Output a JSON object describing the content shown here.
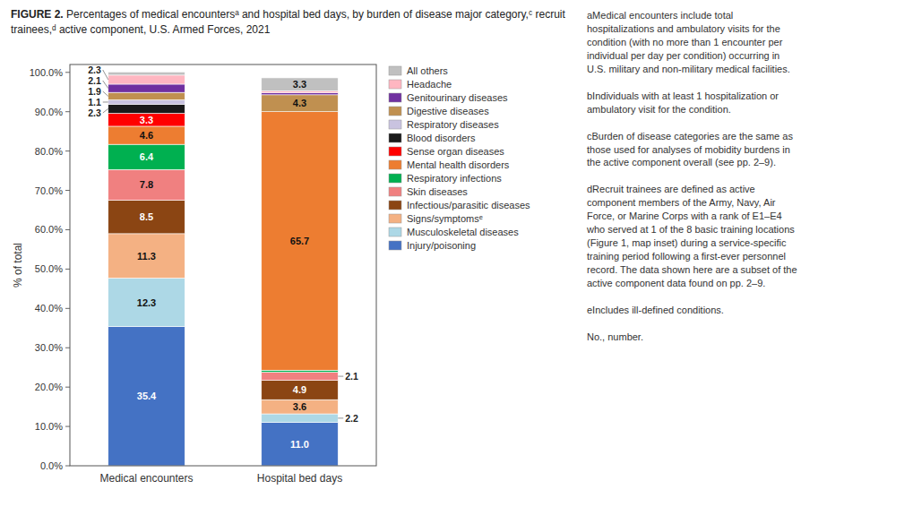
{
  "chart_data": {
    "type": "bar",
    "stacked": true,
    "title": "FIGURE 2.",
    "subtitle": "Percentages of medical encountersᵃ and hospital bed days, by burden of disease major category,ᶜ recruit trainees,ᵈ active component, U.S. Armed Forces, 2021",
    "ylabel": "% of total",
    "categories": [
      "Medical encounters",
      "Hospital bed days"
    ],
    "series": [
      {
        "name": "Injury/poisoning",
        "color": "#4472C4",
        "values": [
          35.4,
          11.0
        ],
        "value_labels": [
          "35.4",
          "11.0"
        ]
      },
      {
        "name": "Musculoskeletal diseases",
        "color": "#ADD8E6",
        "values": [
          12.3,
          2.2
        ],
        "value_labels": [
          "12.3",
          "2.2"
        ]
      },
      {
        "name": "Signs/symptomsᵉ",
        "color": "#F4B183",
        "values": [
          11.3,
          3.6
        ],
        "value_labels": [
          "11.3",
          "3.6"
        ]
      },
      {
        "name": "Infectious/parasitic diseases",
        "color": "#8B4513",
        "values": [
          8.5,
          4.9
        ],
        "value_labels": [
          "8.5",
          "4.9"
        ]
      },
      {
        "name": "Skin diseases",
        "color": "#F08080",
        "values": [
          7.8,
          2.1
        ],
        "value_labels": [
          "7.8",
          "2.1"
        ]
      },
      {
        "name": "Respiratory infections",
        "color": "#00B050",
        "values": [
          6.4,
          0.5
        ],
        "value_labels": [
          "6.4",
          null
        ]
      },
      {
        "name": "Mental health disorders",
        "color": "#ED7D31",
        "values": [
          4.6,
          65.7
        ],
        "value_labels": [
          "4.6",
          "65.7"
        ]
      },
      {
        "name": "Sense organ diseases",
        "color": "#FF0000",
        "values": [
          3.3,
          null
        ],
        "value_labels": [
          "3.3",
          null
        ]
      },
      {
        "name": "Blood disorders",
        "color": "#1A1A1A",
        "values": [
          2.3,
          null
        ],
        "value_labels": [
          "2.3",
          null
        ]
      },
      {
        "name": "Respiratory diseases",
        "color": "#C9C3E0",
        "values": [
          1.1,
          null
        ],
        "value_labels": [
          "1.1",
          null
        ]
      },
      {
        "name": "Digestive diseases",
        "color": "#C09050",
        "values": [
          1.9,
          4.3
        ],
        "value_labels": [
          "1.9",
          "4.3"
        ]
      },
      {
        "name": "Genitourinary diseases",
        "color": "#7030A0",
        "values": [
          2.1,
          0.5
        ],
        "value_labels": [
          "2.1",
          null
        ]
      },
      {
        "name": "Headache",
        "color": "#FFB6C1",
        "values": [
          2.3,
          0.5
        ],
        "value_labels": [
          "2.3",
          null
        ]
      },
      {
        "name": "All others",
        "color": "#C0C0C0",
        "values": [
          0.8,
          3.3
        ],
        "value_labels": [
          null,
          "3.3"
        ]
      }
    ],
    "ylim": [
      0,
      102
    ],
    "yticks": [
      {
        "value": 0,
        "label": "0.0%"
      },
      {
        "value": 10,
        "label": "10.0%"
      },
      {
        "value": 20,
        "label": "20.0%"
      },
      {
        "value": 30,
        "label": "30.0%"
      },
      {
        "value": 40,
        "label": "40.0%"
      },
      {
        "value": 50,
        "label": "50.0%"
      },
      {
        "value": 60,
        "label": "60.0%"
      },
      {
        "value": 70,
        "label": "70.0%"
      },
      {
        "value": 80,
        "label": "80.0%"
      },
      {
        "value": 90,
        "label": "90.0%"
      },
      {
        "value": 100,
        "label": "100.0%"
      }
    ],
    "grid": false,
    "legend": "upper right",
    "data_labels": true,
    "annotations": [
      "aMedical encounters include total\nhospitalizations and ambulatory visits for the\ncondition (with no more than 1 encounter per\nindividual per day per condition) occurring in\nU.S. military and non-military medical facilities.\n\nbIndividuals with at least 1 hospitalization or\nambulatory visit for the condition.\n\ncBurden of disease categories are the same as\nthose used for analyses of mobidity burdens in\nthe active component overall (see pp. 2–9).\n\ndRecruit trainees are defined as active\ncomponent members of the Army, Navy, Air\nForce, or Marine Corps with a rank of E1–E4\nwho served at 1 of the 8 basic training locations\n(Figure 1, map inset) during a service-specific\ntraining period following a first-ever personnel\nrecord. The data shown here are a subset of the\nactive component data found on pp. 2–9.\n\neIncludes ill-defined conditions.\n\nNo., number."
    ]
  }
}
